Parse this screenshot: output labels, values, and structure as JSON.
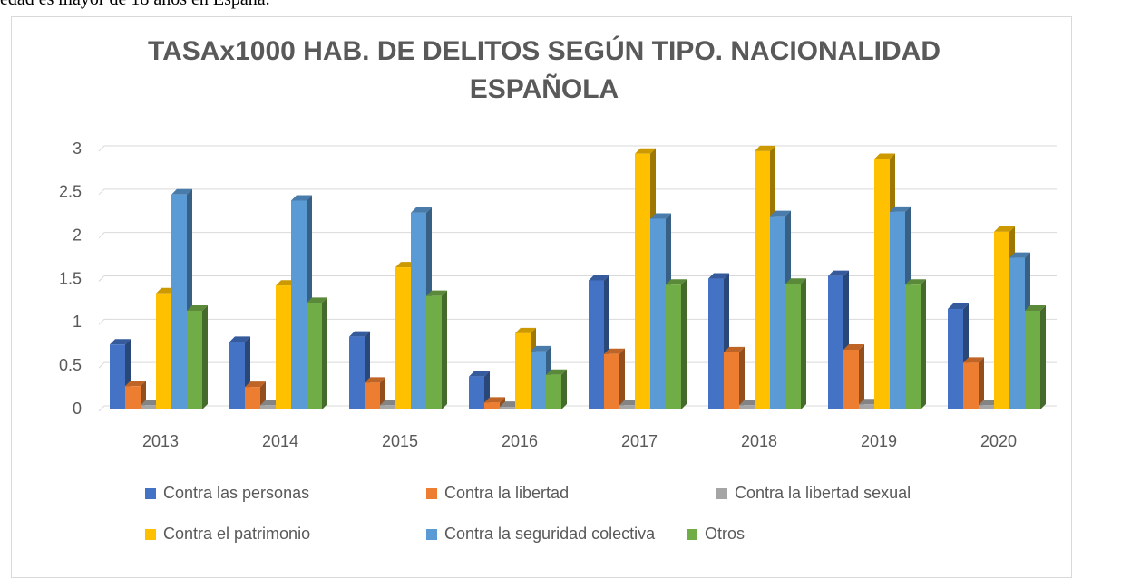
{
  "page_text": "edad es mayor de 18 años en España.",
  "chart_data": {
    "type": "bar3d",
    "title": "TASAx1000 HAB. DE DELITOS SEGÚN TIPO. NACIONALIDAD ESPAÑOLA",
    "categories": [
      "2013",
      "2014",
      "2015",
      "2016",
      "2017",
      "2018",
      "2019",
      "2020"
    ],
    "series": [
      {
        "name": "Contra las personas",
        "color": "#4472c4",
        "values": [
          0.75,
          0.78,
          0.84,
          0.38,
          1.49,
          1.51,
          1.54,
          1.16
        ]
      },
      {
        "name": "Contra la libertad",
        "color": "#ed7d31",
        "values": [
          0.27,
          0.26,
          0.31,
          0.08,
          0.64,
          0.66,
          0.69,
          0.54
        ]
      },
      {
        "name": "Contra la libertad sexual",
        "color": "#a5a5a5",
        "values": [
          0.05,
          0.05,
          0.05,
          0.03,
          0.05,
          0.05,
          0.06,
          0.05
        ]
      },
      {
        "name": "Contra el patrimonio",
        "color": "#ffc000",
        "values": [
          1.34,
          1.43,
          1.64,
          0.88,
          2.95,
          2.98,
          2.89,
          2.05
        ]
      },
      {
        "name": "Contra la seguridad colectiva",
        "color": "#5b9bd5",
        "values": [
          2.48,
          2.41,
          2.27,
          0.67,
          2.2,
          2.23,
          2.28,
          1.75
        ]
      },
      {
        "name": "Otros",
        "color": "#70ad47",
        "values": [
          1.14,
          1.23,
          1.31,
          0.4,
          1.44,
          1.45,
          1.44,
          1.14
        ]
      }
    ],
    "ylim": [
      0,
      3
    ],
    "yticks": [
      0,
      0.5,
      1,
      1.5,
      2,
      2.5,
      3
    ],
    "grid": true,
    "legend": "bottom"
  }
}
